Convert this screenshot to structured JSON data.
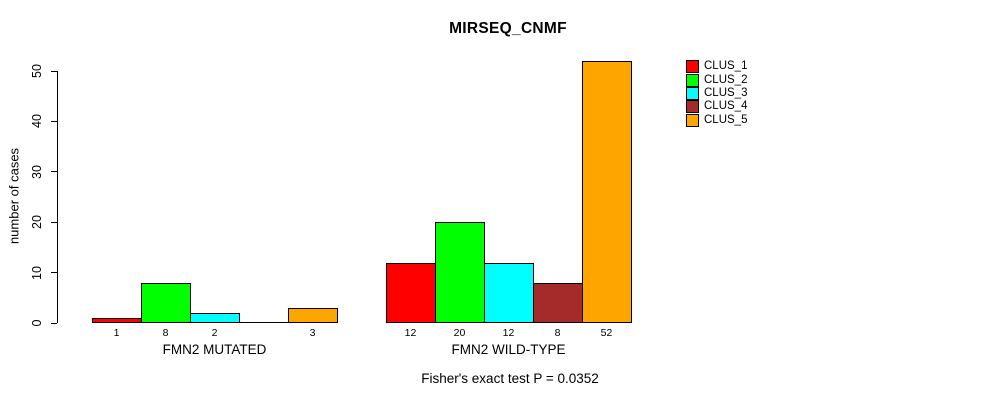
{
  "chart_data": {
    "type": "bar",
    "title": "MIRSEQ_CNMF",
    "ylabel": "number of cases",
    "xlabel": "",
    "ylim": [
      0,
      50
    ],
    "yticks": [
      0,
      10,
      20,
      30,
      40,
      50
    ],
    "grid": false,
    "legend_position": "right",
    "categories": [
      "FMN2 MUTATED",
      "FMN2 WILD-TYPE"
    ],
    "series": [
      {
        "name": "CLUS_1",
        "color": "#ff0000",
        "values": [
          1,
          12
        ]
      },
      {
        "name": "CLUS_2",
        "color": "#00ff00",
        "values": [
          8,
          20
        ]
      },
      {
        "name": "CLUS_3",
        "color": "#00ffff",
        "values": [
          2,
          12
        ]
      },
      {
        "name": "CLUS_4",
        "color": "#a52a2a",
        "values": [
          0,
          8
        ]
      },
      {
        "name": "CLUS_5",
        "color": "#ffa500",
        "values": [
          3,
          52
        ]
      }
    ],
    "bar_value_labels": [
      [
        "1",
        "8",
        "2",
        "",
        "3"
      ],
      [
        "12",
        "20",
        "12",
        "8",
        "52"
      ]
    ],
    "annotation": "Fisher's exact test P = 0.0352"
  }
}
